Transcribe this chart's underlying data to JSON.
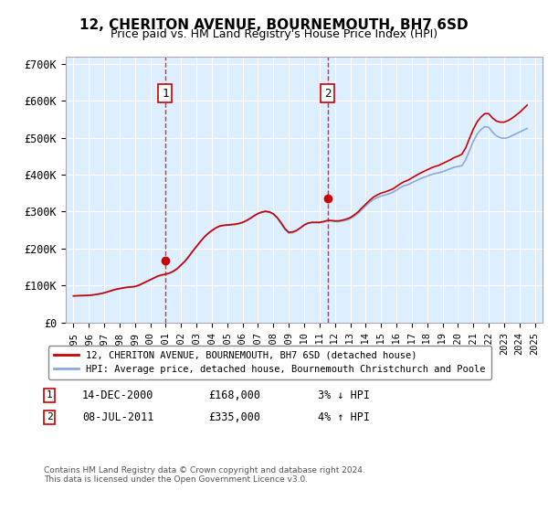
{
  "title": "12, CHERITON AVENUE, BOURNEMOUTH, BH7 6SD",
  "subtitle": "Price paid vs. HM Land Registry's House Price Index (HPI)",
  "background_color": "#ffffff",
  "plot_bg_color": "#ddeeff",
  "grid_color": "#ffffff",
  "line1_color": "#cc0000",
  "line2_color": "#88aadd",
  "ylim": [
    0,
    720000
  ],
  "yticks": [
    0,
    100000,
    200000,
    300000,
    400000,
    500000,
    600000,
    700000
  ],
  "ytick_labels": [
    "£0",
    "£100K",
    "£200K",
    "£300K",
    "£400K",
    "£500K",
    "£600K",
    "£700K"
  ],
  "xlim_start": 1994.5,
  "xlim_end": 2025.5,
  "xticks": [
    1995,
    1996,
    1997,
    1998,
    1999,
    2000,
    2001,
    2002,
    2003,
    2004,
    2005,
    2006,
    2007,
    2008,
    2009,
    2010,
    2011,
    2012,
    2013,
    2014,
    2015,
    2016,
    2017,
    2018,
    2019,
    2020,
    2021,
    2022,
    2023,
    2024,
    2025
  ],
  "vline1_x": 2000.96,
  "vline2_x": 2011.52,
  "marker1_x": 2000.96,
  "marker1_y": 168000,
  "marker2_x": 2011.52,
  "marker2_y": 335000,
  "legend_line1": "12, CHERITON AVENUE, BOURNEMOUTH, BH7 6SD (detached house)",
  "legend_line2": "HPI: Average price, detached house, Bournemouth Christchurch and Poole",
  "annotation1_label": "1",
  "annotation1_date": "14-DEC-2000",
  "annotation1_price": "£168,000",
  "annotation1_hpi": "3% ↓ HPI",
  "annotation2_label": "2",
  "annotation2_date": "08-JUL-2011",
  "annotation2_price": "£335,000",
  "annotation2_hpi": "4% ↑ HPI",
  "footer": "Contains HM Land Registry data © Crown copyright and database right 2024.\nThis data is licensed under the Open Government Licence v3.0.",
  "hpi_data": {
    "years": [
      1995.0,
      1995.25,
      1995.5,
      1995.75,
      1996.0,
      1996.25,
      1996.5,
      1996.75,
      1997.0,
      1997.25,
      1997.5,
      1997.75,
      1998.0,
      1998.25,
      1998.5,
      1998.75,
      1999.0,
      1999.25,
      1999.5,
      1999.75,
      2000.0,
      2000.25,
      2000.5,
      2000.75,
      2001.0,
      2001.25,
      2001.5,
      2001.75,
      2002.0,
      2002.25,
      2002.5,
      2002.75,
      2003.0,
      2003.25,
      2003.5,
      2003.75,
      2004.0,
      2004.25,
      2004.5,
      2004.75,
      2005.0,
      2005.25,
      2005.5,
      2005.75,
      2006.0,
      2006.25,
      2006.5,
      2006.75,
      2007.0,
      2007.25,
      2007.5,
      2007.75,
      2008.0,
      2008.25,
      2008.5,
      2008.75,
      2009.0,
      2009.25,
      2009.5,
      2009.75,
      2010.0,
      2010.25,
      2010.5,
      2010.75,
      2011.0,
      2011.25,
      2011.5,
      2011.75,
      2012.0,
      2012.25,
      2012.5,
      2012.75,
      2013.0,
      2013.25,
      2013.5,
      2013.75,
      2014.0,
      2014.25,
      2014.5,
      2014.75,
      2015.0,
      2015.25,
      2015.5,
      2015.75,
      2016.0,
      2016.25,
      2016.5,
      2016.75,
      2017.0,
      2017.25,
      2017.5,
      2017.75,
      2018.0,
      2018.25,
      2018.5,
      2018.75,
      2019.0,
      2019.25,
      2019.5,
      2019.75,
      2020.0,
      2020.25,
      2020.5,
      2020.75,
      2021.0,
      2021.25,
      2021.5,
      2021.75,
      2022.0,
      2022.25,
      2022.5,
      2022.75,
      2023.0,
      2023.25,
      2023.5,
      2023.75,
      2024.0,
      2024.25,
      2024.5
    ],
    "values": [
      72000,
      72500,
      73000,
      73500,
      74000,
      75000,
      76500,
      78000,
      80000,
      83000,
      86000,
      89000,
      91000,
      93000,
      95000,
      96000,
      97000,
      100000,
      105000,
      110000,
      115000,
      120000,
      125000,
      128000,
      130000,
      133000,
      138000,
      145000,
      155000,
      165000,
      178000,
      192000,
      205000,
      218000,
      230000,
      240000,
      248000,
      255000,
      260000,
      262000,
      263000,
      264000,
      265000,
      267000,
      270000,
      275000,
      281000,
      288000,
      294000,
      298000,
      300000,
      298000,
      293000,
      283000,
      268000,
      252000,
      242000,
      243000,
      248000,
      255000,
      263000,
      268000,
      270000,
      270000,
      270000,
      272000,
      275000,
      275000,
      273000,
      273000,
      275000,
      277000,
      281000,
      287000,
      295000,
      305000,
      315000,
      325000,
      333000,
      338000,
      342000,
      345000,
      348000,
      352000,
      358000,
      365000,
      370000,
      373000,
      378000,
      383000,
      388000,
      392000,
      396000,
      400000,
      403000,
      405000,
      408000,
      412000,
      416000,
      420000,
      422000,
      424000,
      440000,
      465000,
      490000,
      510000,
      522000,
      530000,
      528000,
      515000,
      505000,
      500000,
      498000,
      500000,
      505000,
      510000,
      515000,
      520000,
      525000
    ]
  },
  "price_data": {
    "years": [
      1995.0,
      1995.25,
      1995.5,
      1995.75,
      1996.0,
      1996.25,
      1996.5,
      1996.75,
      1997.0,
      1997.25,
      1997.5,
      1997.75,
      1998.0,
      1998.25,
      1998.5,
      1998.75,
      1999.0,
      1999.25,
      1999.5,
      1999.75,
      2000.0,
      2000.25,
      2000.5,
      2000.75,
      2001.0,
      2001.25,
      2001.5,
      2001.75,
      2002.0,
      2002.25,
      2002.5,
      2002.75,
      2003.0,
      2003.25,
      2003.5,
      2003.75,
      2004.0,
      2004.25,
      2004.5,
      2004.75,
      2005.0,
      2005.25,
      2005.5,
      2005.75,
      2006.0,
      2006.25,
      2006.5,
      2006.75,
      2007.0,
      2007.25,
      2007.5,
      2007.75,
      2008.0,
      2008.25,
      2008.5,
      2008.75,
      2009.0,
      2009.25,
      2009.5,
      2009.75,
      2010.0,
      2010.25,
      2010.5,
      2010.75,
      2011.0,
      2011.25,
      2011.5,
      2011.75,
      2012.0,
      2012.25,
      2012.5,
      2012.75,
      2013.0,
      2013.25,
      2013.5,
      2013.75,
      2014.0,
      2014.25,
      2014.5,
      2014.75,
      2015.0,
      2015.25,
      2015.5,
      2015.75,
      2016.0,
      2016.25,
      2016.5,
      2016.75,
      2017.0,
      2017.25,
      2017.5,
      2017.75,
      2018.0,
      2018.25,
      2018.5,
      2018.75,
      2019.0,
      2019.25,
      2019.5,
      2019.75,
      2020.0,
      2020.25,
      2020.5,
      2020.75,
      2021.0,
      2021.25,
      2021.5,
      2021.75,
      2022.0,
      2022.25,
      2022.5,
      2022.75,
      2023.0,
      2023.25,
      2023.5,
      2023.75,
      2024.0,
      2024.25,
      2024.5
    ],
    "values": [
      72000,
      72500,
      72800,
      73000,
      73500,
      74500,
      76000,
      78000,
      80500,
      83500,
      87000,
      90000,
      92000,
      94000,
      95500,
      96500,
      97500,
      101000,
      106000,
      111000,
      116000,
      121000,
      126000,
      129000,
      131000,
      134000,
      139000,
      146000,
      156000,
      166000,
      179000,
      193000,
      206000,
      219000,
      231000,
      241000,
      249000,
      256000,
      261000,
      263000,
      264000,
      265000,
      266000,
      268000,
      271000,
      276000,
      282000,
      289000,
      295000,
      299000,
      301000,
      299000,
      294000,
      284000,
      270000,
      254000,
      244000,
      245000,
      249000,
      256000,
      264000,
      269000,
      271000,
      271000,
      271000,
      273000,
      276000,
      276000,
      275000,
      275000,
      277000,
      280000,
      284000,
      291000,
      299000,
      310000,
      320000,
      330000,
      339000,
      345000,
      350000,
      353000,
      357000,
      361000,
      368000,
      375000,
      381000,
      385000,
      391000,
      397000,
      403000,
      408000,
      413000,
      418000,
      422000,
      425000,
      430000,
      435000,
      440000,
      446000,
      450000,
      455000,
      472000,
      498000,
      523000,
      543000,
      556000,
      565000,
      565000,
      553000,
      545000,
      542000,
      542000,
      546000,
      552000,
      560000,
      568000,
      578000,
      588000
    ]
  }
}
